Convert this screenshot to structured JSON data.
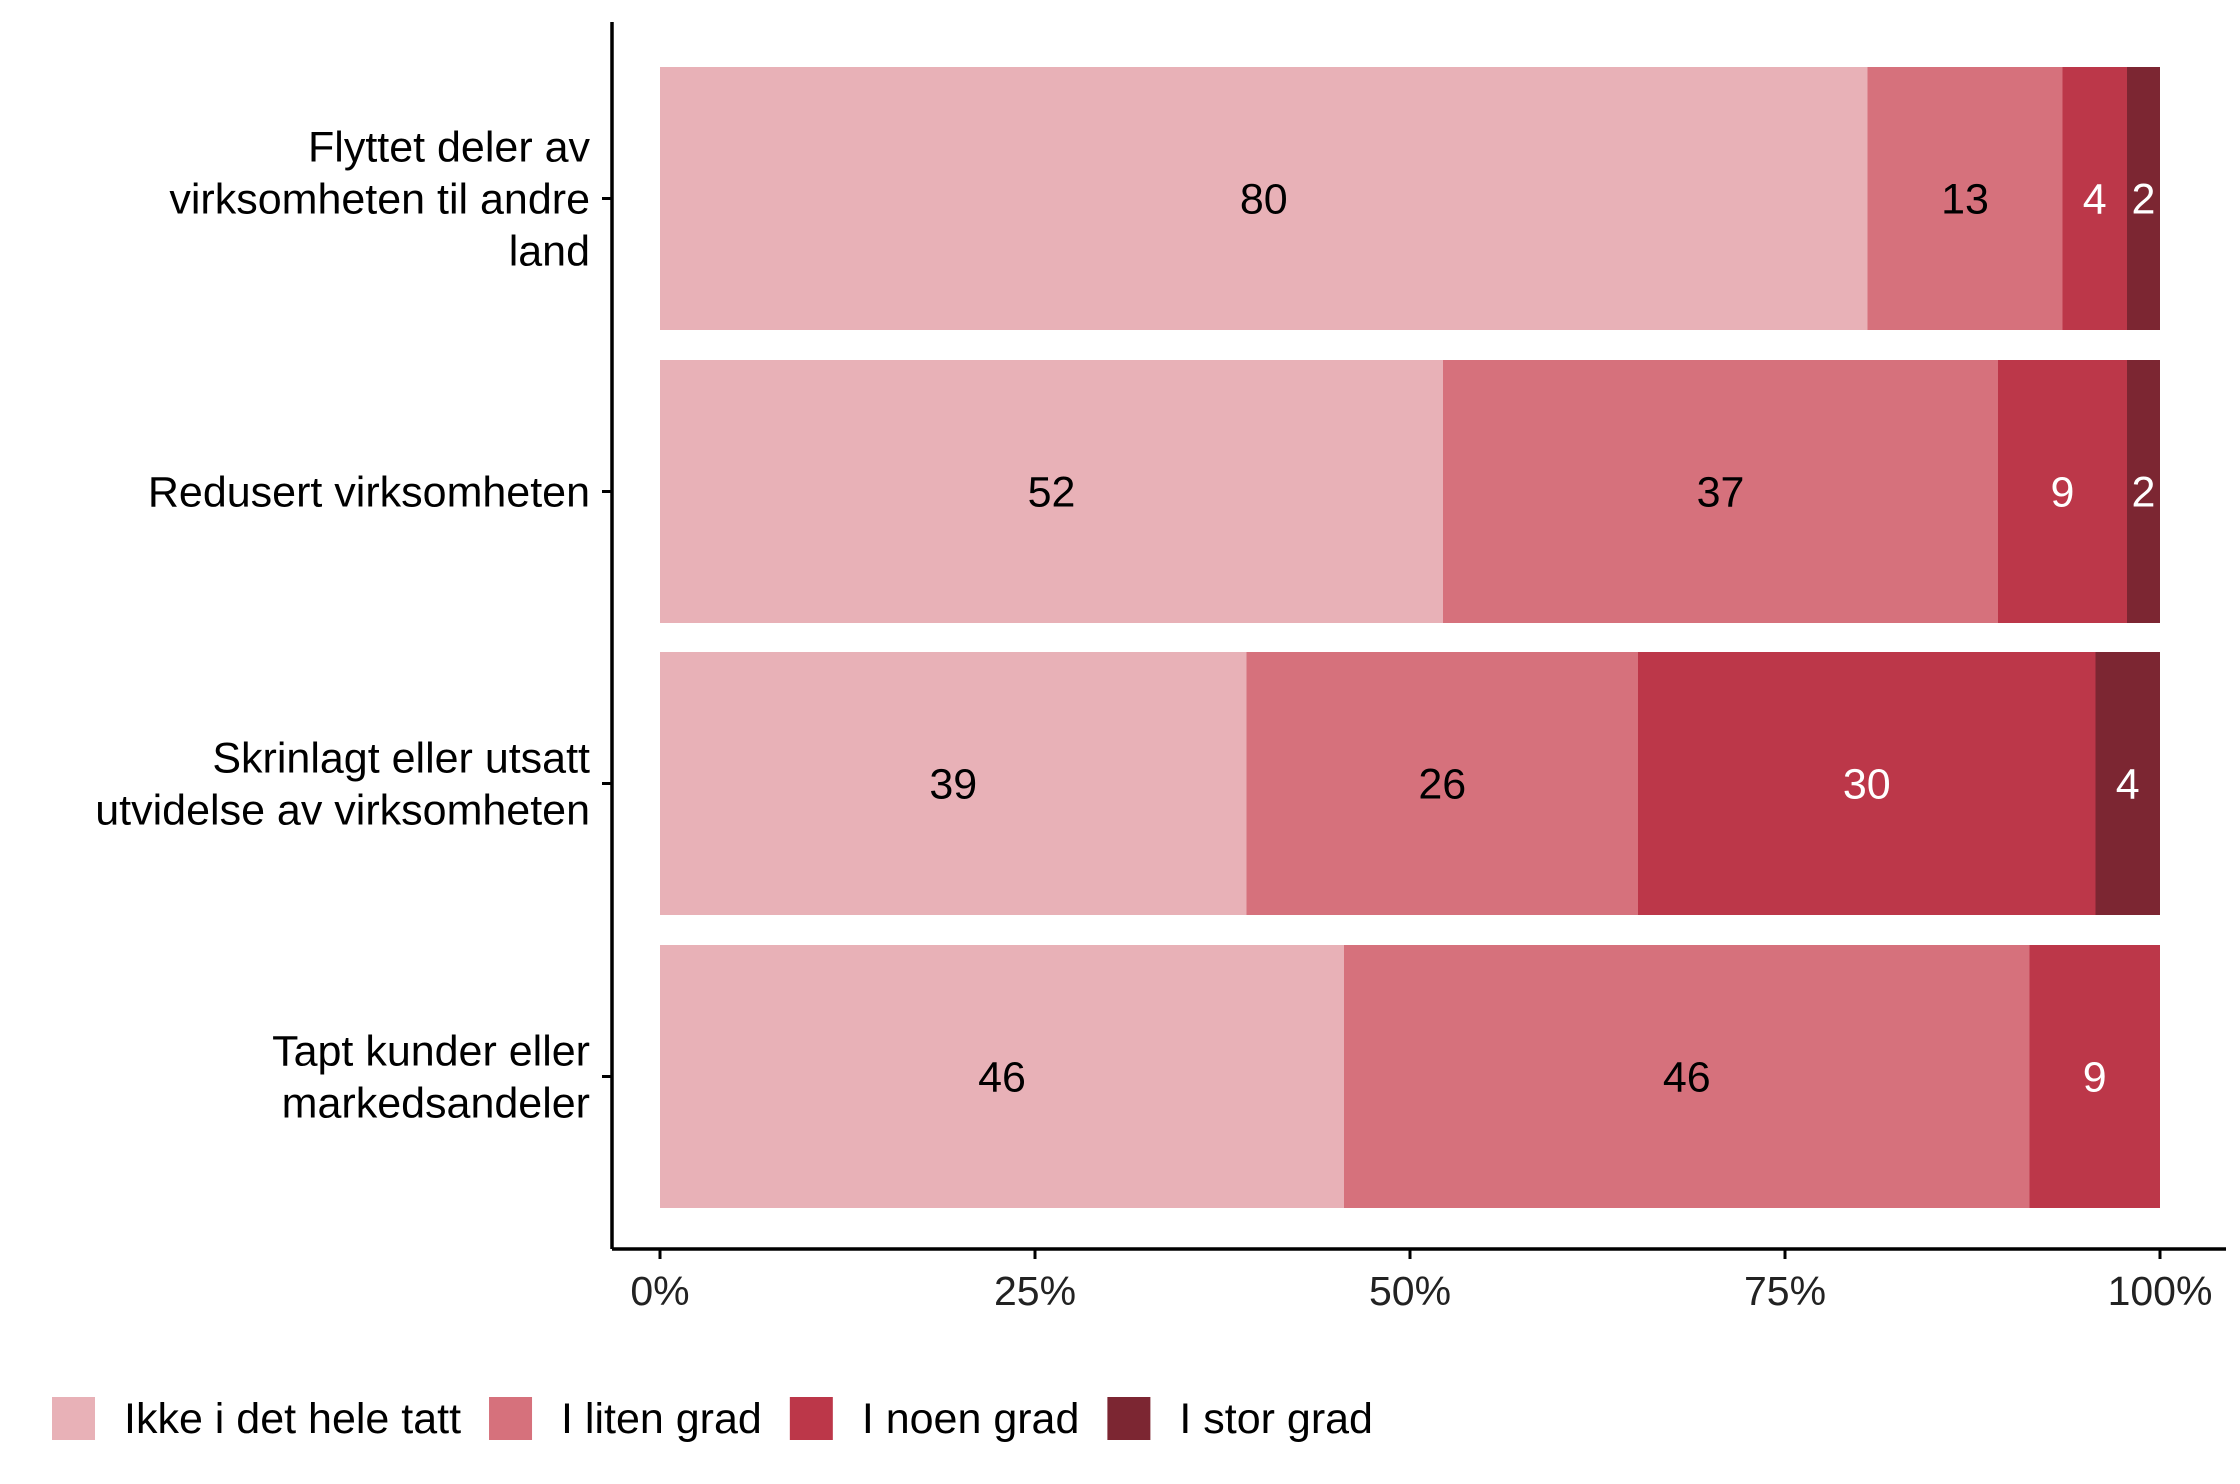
{
  "chart_data": {
    "type": "bar",
    "orientation": "horizontal",
    "stacked": true,
    "title": "",
    "xlabel": "",
    "ylabel": "",
    "xlim": [
      0,
      100
    ],
    "x_ticks": [
      "0%",
      "25%",
      "50%",
      "75%",
      "100%"
    ],
    "x_tick_values": [
      0,
      25,
      50,
      75,
      100
    ],
    "categories": [
      [
        "Flyttet deler av",
        "virksomheten til andre",
        "land"
      ],
      [
        "Redusert virksomheten"
      ],
      [
        "Skrinlagt eller utsatt",
        "utvidelse av virksomheten"
      ],
      [
        "Tapt kunder eller",
        "markedsandeler"
      ]
    ],
    "series": [
      {
        "name": "Ikke i det hele tatt",
        "color": "#E8B1B7",
        "label_color": "#000000",
        "values": [
          80.5,
          52.2,
          39.1,
          45.6
        ],
        "labels": [
          "80",
          "52",
          "39",
          "46"
        ]
      },
      {
        "name": "I liten grad",
        "color": "#D6717C",
        "label_color": "#000000",
        "values": [
          13.0,
          37.0,
          26.1,
          45.7
        ],
        "labels": [
          "13",
          "37",
          "26",
          "46"
        ]
      },
      {
        "name": "I noen grad",
        "color": "#BC3749",
        "label_color": "#FFFFFF",
        "values": [
          4.3,
          8.6,
          30.5,
          8.7
        ],
        "labels": [
          "4",
          "9",
          "30",
          "9"
        ]
      },
      {
        "name": "I stor grad",
        "color": "#7C2632",
        "label_color": "#FFFFFF",
        "values": [
          2.2,
          2.2,
          4.3,
          0
        ],
        "labels": [
          "2",
          "2",
          "4",
          ""
        ]
      }
    ],
    "legend_position": "bottom",
    "grid": false
  }
}
